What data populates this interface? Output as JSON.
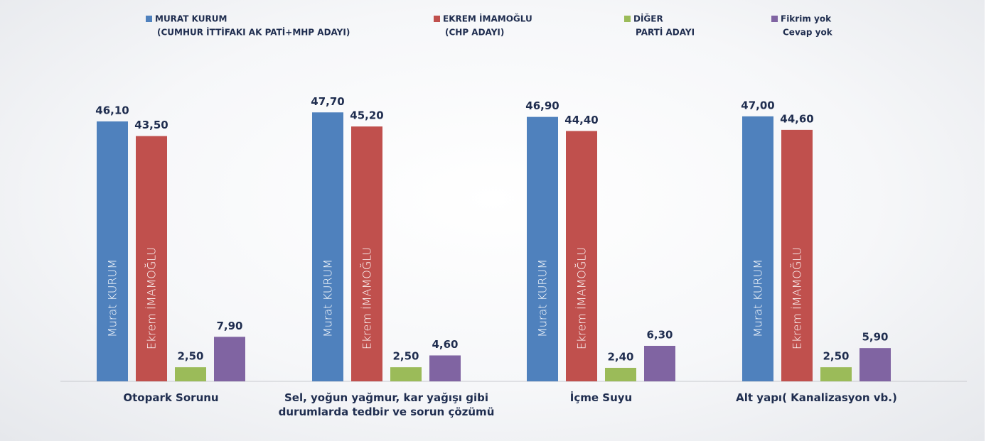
{
  "chart_data": {
    "type": "bar",
    "categories": [
      "Otopark Sorunu",
      "Sel, yoğun yağmur, kar yağışı gibi durumlarda tedbir ve sorun çözümü",
      "İçme Suyu",
      "Alt yapı( Kanalizasyon vb.)"
    ],
    "series": [
      {
        "name": [
          "MURAT KURUM",
          "(CUMHUR İTTİFAKI AK PATİ+MHP ADAYI)"
        ],
        "color": "#4f81bd",
        "bar_label": "Murat KURUM",
        "values": [
          46.1,
          47.7,
          46.9,
          47.0
        ],
        "value_labels": [
          "46,10",
          "47,70",
          "46,90",
          "47,00"
        ]
      },
      {
        "name": [
          "EKREM İMAMOĞLU",
          "(CHP ADAYI)"
        ],
        "color": "#c0504d",
        "bar_label": "Ekrem İMAMOĞLU",
        "values": [
          43.5,
          45.2,
          44.4,
          44.6
        ],
        "value_labels": [
          "43,50",
          "45,20",
          "44,40",
          "44,60"
        ]
      },
      {
        "name": [
          "DİĞER",
          "PARTİ ADAYI"
        ],
        "color": "#9bbb59",
        "values": [
          2.5,
          2.5,
          2.4,
          2.5
        ],
        "value_labels": [
          "2,50",
          "2,50",
          "2,40",
          "2,50"
        ]
      },
      {
        "name": [
          "Fikrim yok",
          "Cevap yok"
        ],
        "color": "#8064a2",
        "values": [
          7.9,
          4.6,
          6.3,
          5.9
        ],
        "value_labels": [
          "7,90",
          "4,60",
          "6,30",
          "5,90"
        ]
      }
    ],
    "ylim": [
      0,
      50
    ]
  }
}
